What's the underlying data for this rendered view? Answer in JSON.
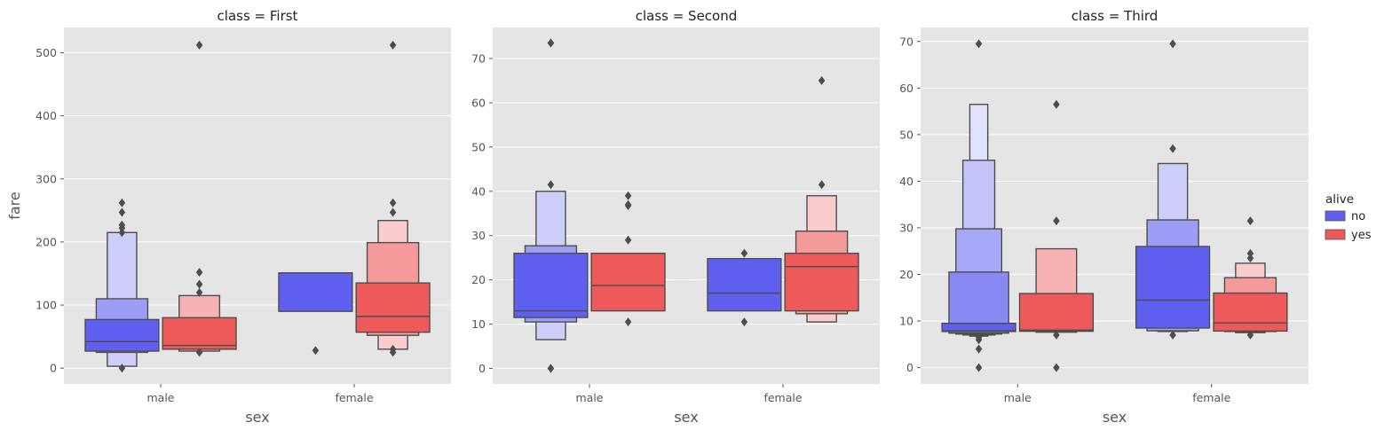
{
  "chart_data": {
    "type": "boxen",
    "facet_variable": "class",
    "legend": {
      "title": "alive",
      "placement": "right",
      "entries": [
        {
          "label": "no",
          "color": "#5f5ff0"
        },
        {
          "label": "yes",
          "color": "#ee5a5a"
        }
      ]
    },
    "ylabel": "fare",
    "xlabel": "sex",
    "categories": [
      "male",
      "female"
    ],
    "grid": true,
    "style": {
      "panel_bg": "#e5e5e5",
      "grid_color": "#ffffff",
      "edge_color": "#4d4d4d",
      "text_color": "#555555"
    },
    "panels": [
      {
        "title": "class = First",
        "ylim": [
          -25,
          540
        ],
        "yticks": [
          0,
          100,
          200,
          300,
          400,
          500
        ],
        "groups": [
          {
            "category": "male",
            "hue": "no",
            "median": 42,
            "levels": [
              [
                27,
                77
              ],
              [
                25,
                110
              ],
              [
                3,
                215
              ]
            ],
            "outliers": [
              0,
              215,
              222,
              227,
              247,
              262
            ]
          },
          {
            "category": "male",
            "hue": "yes",
            "median": 36,
            "levels": [
              [
                30,
                80
              ],
              [
                27,
                115
              ]
            ],
            "outliers": [
              25,
              120,
              133,
              152,
              512
            ]
          },
          {
            "category": "female",
            "hue": "no",
            "median": 151,
            "levels": [
              [
                90,
                151
              ]
            ],
            "outliers": [
              28
            ]
          },
          {
            "category": "female",
            "hue": "yes",
            "median": 82,
            "levels": [
              [
                57,
                135
              ],
              [
                52,
                199
              ],
              [
                30,
                234
              ]
            ],
            "outliers": [
              25,
              30,
              247,
              262,
              512
            ]
          }
        ]
      },
      {
        "title": "class = Second",
        "ylim": [
          -3.5,
          77
        ],
        "yticks": [
          0,
          10,
          20,
          30,
          40,
          50,
          60,
          70
        ],
        "groups": [
          {
            "category": "male",
            "hue": "no",
            "median": 13,
            "levels": [
              [
                11.5,
                26
              ],
              [
                10.5,
                27.7
              ],
              [
                6.5,
                40
              ]
            ],
            "outliers": [
              0,
              0,
              41.5,
              73.5,
              73.5
            ]
          },
          {
            "category": "male",
            "hue": "yes",
            "median": 18.75,
            "levels": [
              [
                13,
                26
              ]
            ],
            "outliers": [
              10.5,
              29,
              36.75,
              37,
              39
            ]
          },
          {
            "category": "female",
            "hue": "no",
            "median": 17,
            "levels": [
              [
                13,
                24.8
              ]
            ],
            "outliers": [
              10.5,
              26
            ]
          },
          {
            "category": "female",
            "hue": "yes",
            "median": 23,
            "levels": [
              [
                13,
                26
              ],
              [
                12.35,
                31
              ],
              [
                10.5,
                39
              ]
            ],
            "outliers": [
              41.5,
              65
            ]
          }
        ]
      },
      {
        "title": "class = Third",
        "ylim": [
          -3.5,
          73
        ],
        "yticks": [
          0,
          10,
          20,
          30,
          40,
          50,
          60,
          70
        ],
        "groups": [
          {
            "category": "male",
            "hue": "no",
            "median": 7.9,
            "levels": [
              [
                7.75,
                9.5
              ],
              [
                7.4,
                20.5
              ],
              [
                7.2,
                29.8
              ],
              [
                7.0,
                44.5
              ],
              [
                6.75,
                56.5
              ]
            ],
            "outliers": [
              0,
              4,
              6,
              6.5,
              69.5
            ]
          },
          {
            "category": "male",
            "hue": "yes",
            "median": 8.05,
            "levels": [
              [
                7.8,
                15.9
              ],
              [
                7.6,
                25.5
              ]
            ],
            "outliers": [
              0,
              7,
              31.5,
              56.5
            ]
          },
          {
            "category": "female",
            "hue": "no",
            "median": 14.5,
            "levels": [
              [
                8.5,
                26
              ],
              [
                7.9,
                31.7
              ],
              [
                7.75,
                43.8
              ]
            ],
            "outliers": [
              7,
              47,
              69.5
            ]
          },
          {
            "category": "female",
            "hue": "yes",
            "median": 9.6,
            "levels": [
              [
                7.85,
                16
              ],
              [
                7.75,
                19.3
              ],
              [
                7.5,
                22.4
              ]
            ],
            "outliers": [
              7,
              23.5,
              24.5,
              31.5
            ]
          }
        ]
      }
    ]
  }
}
